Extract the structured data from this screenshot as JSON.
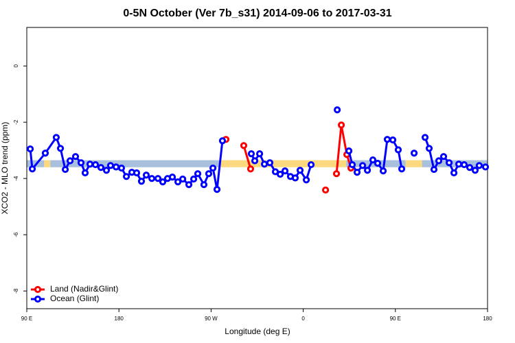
{
  "chart_data": {
    "type": "line",
    "title": "0-5N October (Ver 7b_s31)   2014-09-06 to 2017-03-31",
    "x_label": "Longitude (deg E)",
    "y_label": "XCO2 - MLO trend (ppm)",
    "xlim": [
      90,
      540
    ],
    "ylim": [
      -8.63,
      1.37
    ],
    "xticks": [
      {
        "value": 90,
        "label": "90 E"
      },
      180,
      {
        "value": 270,
        "label": "90 W"
      },
      {
        "value": 360,
        "label": "0"
      },
      {
        "value": 450,
        "label": "90 E"
      },
      {
        "value": 540,
        "label": "180"
      }
    ],
    "yticks": [
      0,
      -2,
      -4,
      -6,
      -8
    ],
    "legend": "bottomleft",
    "band": {
      "ylim": [
        -3.6,
        -3.35
      ],
      "segments": [
        {
          "x": [
            90,
            107
          ],
          "color": "#a9c0dc"
        },
        {
          "x": [
            107,
            113
          ],
          "color": "#fbd97e"
        },
        {
          "x": [
            113,
            278
          ],
          "color": "#a9c0dc"
        },
        {
          "x": [
            278,
            402
          ],
          "color": "#fbd97e"
        },
        {
          "x": [
            402,
            460
          ],
          "color": "#a9c0dc"
        },
        {
          "x": [
            460,
            476
          ],
          "color": "#fbd97e"
        },
        {
          "x": [
            476,
            540
          ],
          "color": "#a9c0dc"
        }
      ]
    },
    "series": [
      {
        "name": "Land (Nadir&Glint)",
        "color": "#ff0000",
        "x": [
          284.5,
          null,
          301.9,
          308.6,
          null,
          381.8,
          null,
          392.5,
          397.2,
          402.6,
          406.6
        ],
        "values": [
          -2.61,
          null,
          -2.83,
          -3.66,
          null,
          -4.41,
          null,
          -3.83,
          -2.1,
          -3.15,
          -3.63
        ]
      },
      {
        "name": "Ocean (Glint)",
        "color": "#0000ff",
        "x": [
          93.4,
          95.4,
          108.1,
          118.8,
          122.9,
          127.6,
          132.3,
          137.6,
          143.0,
          147.0,
          151.7,
          157.1,
          162.4,
          167.8,
          171.8,
          177.2,
          182.5,
          187.3,
          192.6,
          197.3,
          202.0,
          206.7,
          212.1,
          218.1,
          222.8,
          227.5,
          232.2,
          237.6,
          242.3,
          248.3,
          253.0,
          257.0,
          263.0,
          267.7,
          271.8,
          275.8,
          281.1,
          null,
          309.3,
          312.7,
          317.4,
          322.1,
          327.4,
          332.8,
          337.5,
          342.2,
          347.5,
          352.2,
          356.9,
          363.0,
          367.7,
          null,
          393.2,
          null,
          404.6,
          407.9,
          412.6,
          418.0,
          422.7,
          428.0,
          432.7,
          438.1,
          442.1,
          447.5,
          452.8,
          456.2,
          null,
          468.3,
          null,
          479.0,
          483.0,
          487.7,
          492.4,
          497.1,
          502.5,
          507.2,
          511.9,
          517.2,
          522.6,
          527.9,
          531.9,
          538.0
        ],
        "values": [
          -2.95,
          -3.66,
          -3.1,
          -2.54,
          -2.93,
          -3.68,
          -3.37,
          -3.22,
          -3.44,
          -3.8,
          -3.49,
          -3.51,
          -3.61,
          -3.71,
          -3.54,
          -3.59,
          -3.63,
          -3.93,
          -3.78,
          -3.8,
          -4.1,
          -3.88,
          -4.0,
          -4.0,
          -4.12,
          -4.0,
          -3.95,
          -4.12,
          -4.02,
          -4.22,
          -4.02,
          -3.83,
          -4.22,
          -3.83,
          -3.63,
          -4.39,
          -2.66,
          null,
          -3.12,
          -3.37,
          -3.12,
          -3.49,
          -3.44,
          -3.76,
          -3.85,
          -3.73,
          -3.93,
          -3.98,
          -3.71,
          -4.05,
          -3.51,
          null,
          -1.56,
          null,
          -3.02,
          -3.51,
          -3.78,
          -3.54,
          -3.71,
          -3.34,
          -3.46,
          -3.73,
          -2.61,
          -2.63,
          -2.98,
          -3.66,
          null,
          -3.1,
          null,
          -2.54,
          -2.93,
          -3.68,
          -3.37,
          -3.22,
          -3.44,
          -3.8,
          -3.49,
          -3.51,
          -3.61,
          -3.71,
          -3.54,
          -3.59
        ]
      }
    ]
  }
}
